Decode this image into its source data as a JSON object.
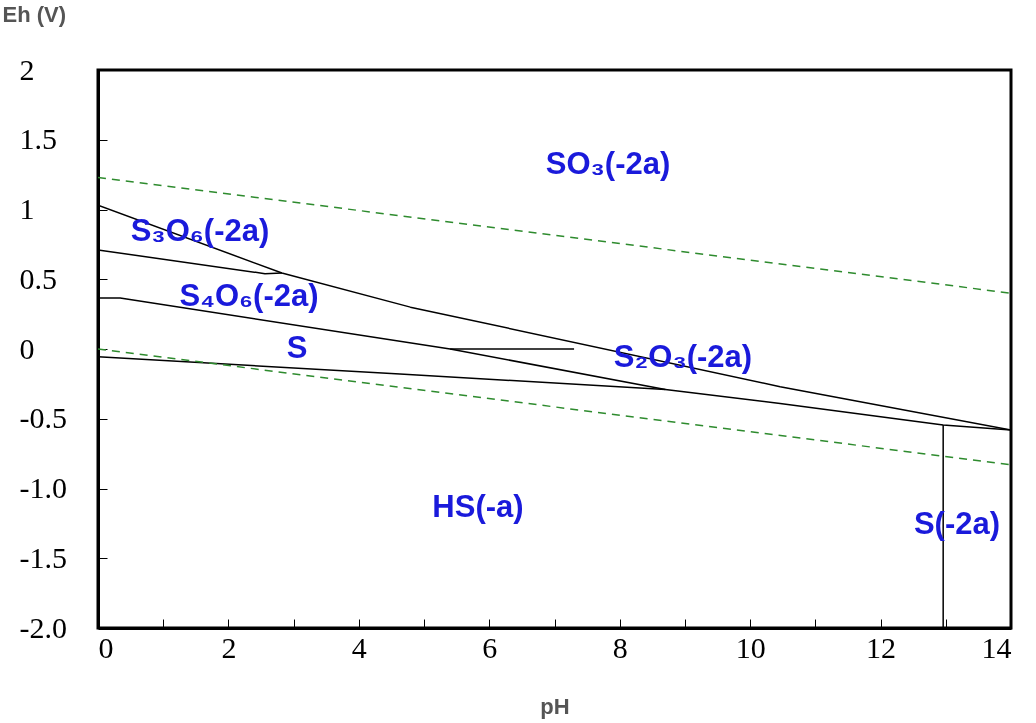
{
  "chart_data": {
    "type": "line",
    "xlabel": "pH",
    "ylabel": "Eh (V)",
    "xlim": [
      0,
      14
    ],
    "ylim": [
      -2,
      2
    ],
    "xticks": [
      0,
      {
        "value": 1,
        "label": null
      },
      2,
      {
        "value": 3,
        "label": null
      },
      4,
      {
        "value": 5,
        "label": null
      },
      6,
      {
        "value": 7,
        "label": null
      },
      8,
      {
        "value": 9,
        "label": null
      },
      10,
      {
        "value": 11,
        "label": null
      },
      12,
      {
        "value": 13,
        "label": null
      },
      14
    ],
    "yticks": [
      {
        "value": -2,
        "label": "-2.0"
      },
      -1.5,
      {
        "value": -1,
        "label": "-1.0"
      },
      -0.5,
      0,
      0.5,
      1,
      1.5,
      2
    ],
    "series": [
      {
        "color": "#000000",
        "line_style": "solid",
        "x": [
          0,
          2.82,
          4.79,
          10.46,
          14
        ],
        "values": [
          1.03,
          0.545,
          0.3,
          -0.27,
          -0.58
        ]
      },
      {
        "color": "#000000",
        "line_style": "solid",
        "x": [
          0,
          2.56,
          2.82
        ],
        "values": [
          0.71,
          0.54,
          0.545
        ]
      },
      {
        "color": "#000000",
        "line_style": "solid",
        "x": [
          0,
          0.34,
          5.4,
          8.7
        ],
        "values": [
          0.365,
          0.365,
          0,
          -0.29
        ]
      },
      {
        "color": "#000000",
        "line_style": "solid",
        "x": [
          5.4,
          7.3
        ],
        "values": [
          0,
          0
        ]
      },
      {
        "color": "#000000",
        "line_style": "solid",
        "x": [
          0,
          4.63,
          8.7,
          10.46,
          12.96,
          14
        ],
        "values": [
          -0.055,
          -0.18,
          -0.29,
          -0.39,
          -0.545,
          -0.58
        ]
      },
      {
        "color": "#000000",
        "line_style": "solid",
        "x": [
          12.96,
          12.96
        ],
        "values": [
          -0.545,
          -2
        ]
      },
      {
        "color": "#2e8b2e",
        "line_style": "dashed",
        "x": [
          0,
          14
        ],
        "values": [
          1.23,
          0.4
        ]
      },
      {
        "color": "#2e8b2e",
        "line_style": "dashed",
        "x": [
          0,
          14
        ],
        "values": [
          0,
          -0.83
        ]
      }
    ],
    "annotations": [
      "SO₃(-2a)",
      "S₃O₆(-2a)",
      "S₄O₆(-2a)",
      "S",
      "S₂O₃(-2a)",
      "HS(-a)",
      "S(-2a)"
    ]
  }
}
